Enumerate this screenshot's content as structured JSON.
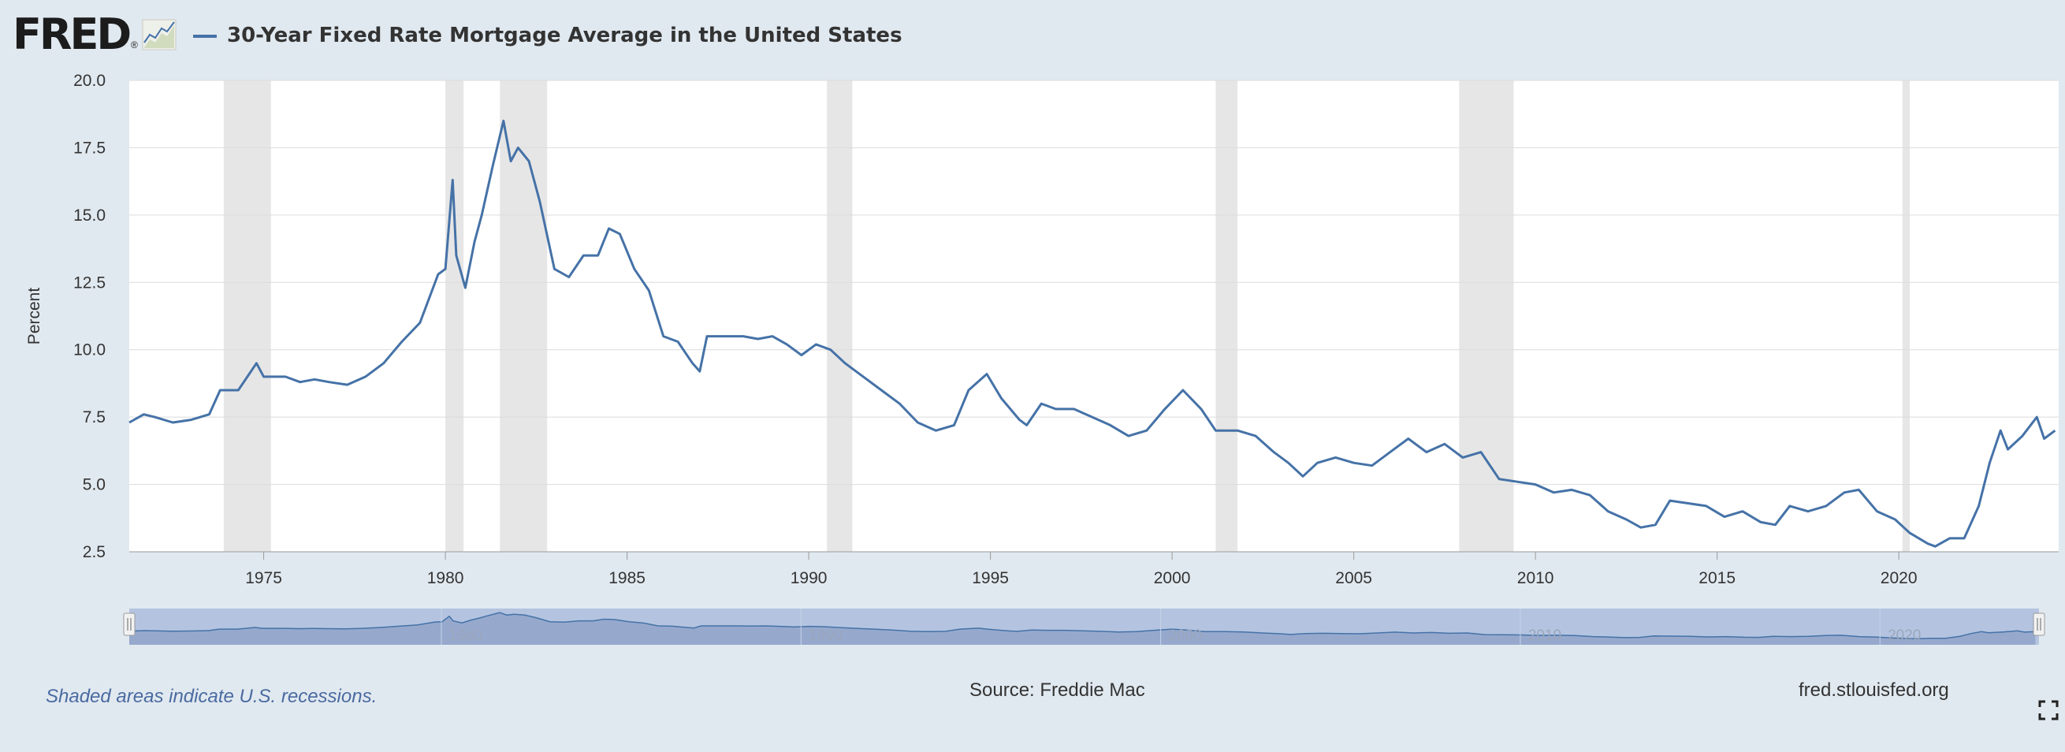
{
  "header": {
    "logo_text": "FRED",
    "logo_reg": "®",
    "logo_icon": "line-chart-icon",
    "title": "30-Year Fixed Rate Mortgage Average in the United States"
  },
  "footer": {
    "note": "Shaded areas indicate U.S. recessions.",
    "source": "Source: Freddie Mac",
    "url": "fred.stlouisfed.org",
    "fullscreen_icon": "fullscreen-icon"
  },
  "colors": {
    "series": "#4572a7",
    "background": "#e1e9f0",
    "plot": "#ffffff",
    "recession": "#e6e6e6",
    "navigator": "#b4c4e0"
  },
  "chart_data": {
    "type": "line",
    "title": "30-Year Fixed Rate Mortgage Average in the United States",
    "ylabel": "Percent",
    "xlabel": "",
    "ylim": [
      2.5,
      20.0
    ],
    "y_ticks": [
      "20.0",
      "17.5",
      "15.0",
      "12.5",
      "10.0",
      "7.5",
      "5.0",
      "2.5"
    ],
    "x_ticks": [
      "1975",
      "1980",
      "1985",
      "1990",
      "1995",
      "2000",
      "2005",
      "2010",
      "2015",
      "2020"
    ],
    "navigator_ticks": [
      "1980",
      "1990",
      "2000",
      "2010",
      "2020"
    ],
    "grid": true,
    "legend": "top-left",
    "recessions": [
      [
        1973.9,
        1975.2
      ],
      [
        1980.0,
        1980.5
      ],
      [
        1981.5,
        1982.8
      ],
      [
        1990.5,
        1991.2
      ],
      [
        2001.2,
        2001.8
      ],
      [
        2007.9,
        2009.4
      ],
      [
        2020.1,
        2020.3
      ]
    ],
    "series": [
      {
        "name": "30-Year Fixed Rate Mortgage Average in the United States",
        "x": [
          1971.3,
          1971.7,
          1972.0,
          1972.5,
          1973.0,
          1973.5,
          1973.8,
          1974.3,
          1974.8,
          1975.0,
          1975.2,
          1975.6,
          1976.0,
          1976.4,
          1976.8,
          1977.3,
          1977.8,
          1978.3,
          1978.8,
          1979.3,
          1979.8,
          1980.0,
          1980.2,
          1980.3,
          1980.55,
          1980.8,
          1981.0,
          1981.3,
          1981.6,
          1981.8,
          1982.0,
          1982.3,
          1982.6,
          1983.0,
          1983.4,
          1983.8,
          1984.2,
          1984.5,
          1984.8,
          1985.2,
          1985.6,
          1986.0,
          1986.4,
          1986.8,
          1987.0,
          1987.2,
          1987.5,
          1987.8,
          1988.2,
          1988.6,
          1989.0,
          1989.4,
          1989.8,
          1990.2,
          1990.6,
          1991.0,
          1991.5,
          1992.0,
          1992.5,
          1993.0,
          1993.5,
          1994.0,
          1994.4,
          1994.9,
          1995.3,
          1995.8,
          1996.0,
          1996.4,
          1996.8,
          1997.3,
          1997.8,
          1998.3,
          1998.8,
          1999.3,
          1999.8,
          2000.3,
          2000.8,
          2001.2,
          2001.8,
          2002.3,
          2002.8,
          2003.2,
          2003.6,
          2004.0,
          2004.5,
          2005.0,
          2005.5,
          2006.0,
          2006.5,
          2007.0,
          2007.5,
          2008.0,
          2008.5,
          2009.0,
          2009.5,
          2010.0,
          2010.5,
          2011.0,
          2011.5,
          2012.0,
          2012.5,
          2012.9,
          2013.3,
          2013.7,
          2014.2,
          2014.7,
          2015.2,
          2015.7,
          2016.2,
          2016.6,
          2017.0,
          2017.5,
          2018.0,
          2018.5,
          2018.9,
          2019.4,
          2019.9,
          2020.3,
          2020.8,
          2021.0,
          2021.4,
          2021.8,
          2022.2,
          2022.5,
          2022.8,
          2023.0,
          2023.4,
          2023.8,
          2024.0,
          2024.3
        ],
        "values": [
          7.3,
          7.6,
          7.5,
          7.3,
          7.4,
          7.6,
          8.5,
          8.5,
          9.5,
          9.0,
          9.0,
          9.0,
          8.8,
          8.9,
          8.8,
          8.7,
          9.0,
          9.5,
          10.3,
          11.0,
          12.8,
          13.0,
          16.3,
          13.5,
          12.3,
          14.0,
          15.0,
          16.8,
          18.5,
          17.0,
          17.5,
          17.0,
          15.5,
          13.0,
          12.7,
          13.5,
          13.5,
          14.5,
          14.3,
          13.0,
          12.2,
          10.5,
          10.3,
          9.5,
          9.2,
          10.5,
          10.5,
          10.5,
          10.5,
          10.4,
          10.5,
          10.2,
          9.8,
          10.2,
          10.0,
          9.5,
          9.0,
          8.5,
          8.0,
          7.3,
          7.0,
          7.2,
          8.5,
          9.1,
          8.2,
          7.4,
          7.2,
          8.0,
          7.8,
          7.8,
          7.5,
          7.2,
          6.8,
          7.0,
          7.8,
          8.5,
          7.8,
          7.0,
          7.0,
          6.8,
          6.2,
          5.8,
          5.3,
          5.8,
          6.0,
          5.8,
          5.7,
          6.2,
          6.7,
          6.2,
          6.5,
          6.0,
          6.2,
          5.2,
          5.1,
          5.0,
          4.7,
          4.8,
          4.6,
          4.0,
          3.7,
          3.4,
          3.5,
          4.4,
          4.3,
          4.2,
          3.8,
          4.0,
          3.6,
          3.5,
          4.2,
          4.0,
          4.2,
          4.7,
          4.8,
          4.0,
          3.7,
          3.2,
          2.8,
          2.7,
          3.0,
          3.0,
          4.2,
          5.8,
          7.0,
          6.3,
          6.8,
          7.5,
          6.7,
          7.0
        ]
      }
    ]
  }
}
